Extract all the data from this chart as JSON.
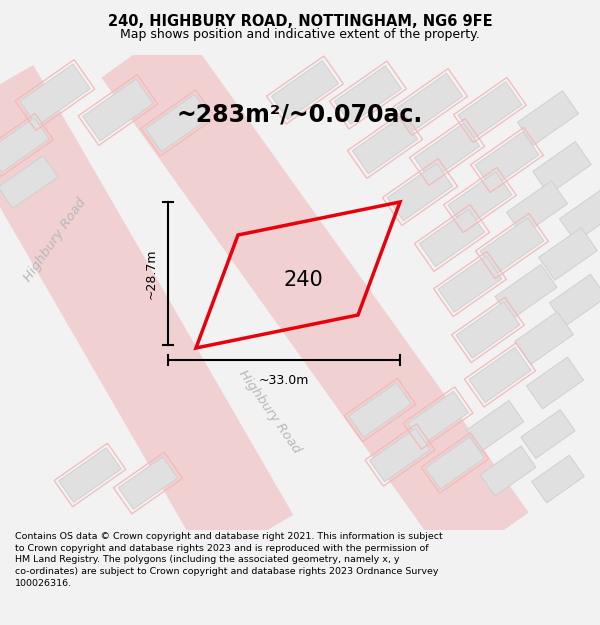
{
  "title": "240, HIGHBURY ROAD, NOTTINGHAM, NG6 9FE",
  "subtitle": "Map shows position and indicative extent of the property.",
  "footer": "Contains OS data © Crown copyright and database right 2021. This information is subject to Crown copyright and database rights 2023 and is reproduced with the permission of HM Land Registry. The polygons (including the associated geometry, namely x, y co-ordinates) are subject to Crown copyright and database rights 2023 Ordnance Survey 100026316.",
  "area_label": "~283m²/~0.070ac.",
  "plot_number": "240",
  "width_label": "~33.0m",
  "height_label": "~28.7m",
  "road_label_1": "Highbury Road",
  "road_label_2": "Highbury Road",
  "bg_color": "#f2f2f2",
  "map_bg": "#ffffff",
  "plot_edgecolor": "#e8000a",
  "building_fill": "#e0e0e0",
  "building_edge": "#d0d0d0",
  "road_fill": "#ebebeb",
  "pink_edge": "#f5b8b8",
  "pink_fill": "#fde8e8",
  "road_stripe_color": "#f0d0d0",
  "title_fontsize": 10.5,
  "subtitle_fontsize": 9,
  "area_fontsize": 17,
  "plot_num_fontsize": 15,
  "dim_fontsize": 9,
  "road_label_fontsize": 9.5,
  "footer_fontsize": 6.8
}
